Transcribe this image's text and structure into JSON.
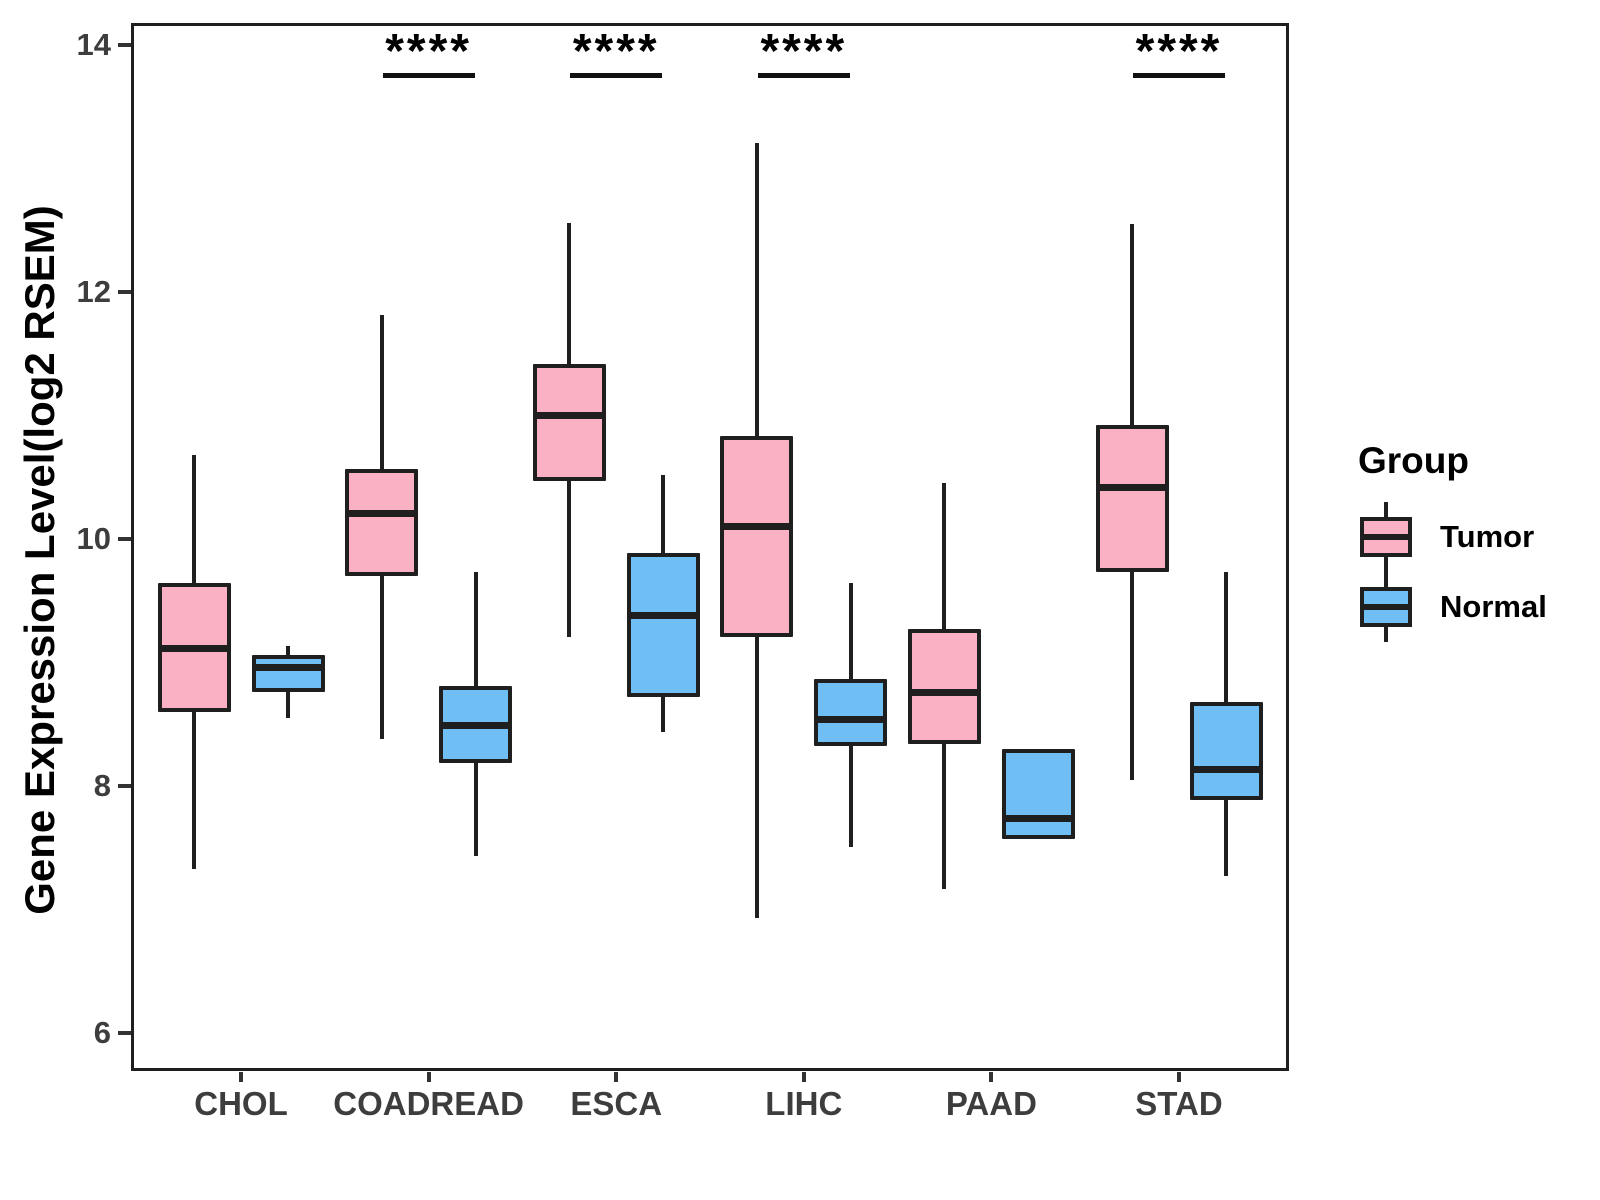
{
  "chart_data": {
    "type": "bar",
    "subtype": "grouped_boxplot",
    "title": "",
    "xlabel": "",
    "ylabel": "Gene Expression Level(log2 RSEM)",
    "categories": [
      "CHOL",
      "COADREAD",
      "ESCA",
      "LIHC",
      "PAAD",
      "STAD"
    ],
    "groups": [
      "Tumor",
      "Normal"
    ],
    "y_ticks": [
      6,
      8,
      10,
      12,
      14
    ],
    "ylim": [
      5.69,
      14.18
    ],
    "grid": "off",
    "legend_position": "right",
    "colors": {
      "Tumor": "#F9B1C3",
      "Normal": "#70BFF4",
      "line": "#1f1f1f"
    },
    "series": [
      {
        "category": "CHOL",
        "group": "Tumor",
        "whisker_low": 7.33,
        "q1": 8.6,
        "median": 9.11,
        "q3": 9.64,
        "whisker_high": 10.68
      },
      {
        "category": "CHOL",
        "group": "Normal",
        "whisker_low": 8.55,
        "q1": 8.76,
        "median": 8.96,
        "q3": 9.06,
        "whisker_high": 9.13
      },
      {
        "category": "COADREAD",
        "group": "Tumor",
        "whisker_low": 8.38,
        "q1": 9.7,
        "median": 10.21,
        "q3": 10.57,
        "whisker_high": 11.81
      },
      {
        "category": "COADREAD",
        "group": "Normal",
        "whisker_low": 7.43,
        "q1": 8.19,
        "median": 8.49,
        "q3": 8.81,
        "whisker_high": 9.73
      },
      {
        "category": "ESCA",
        "group": "Tumor",
        "whisker_low": 9.21,
        "q1": 10.47,
        "median": 11.0,
        "q3": 11.42,
        "whisker_high": 12.56
      },
      {
        "category": "ESCA",
        "group": "Normal",
        "whisker_low": 8.44,
        "q1": 8.72,
        "median": 9.38,
        "q3": 9.89,
        "whisker_high": 10.52
      },
      {
        "category": "LIHC",
        "group": "Tumor",
        "whisker_low": 6.93,
        "q1": 9.21,
        "median": 10.1,
        "q3": 10.83,
        "whisker_high": 13.21
      },
      {
        "category": "LIHC",
        "group": "Normal",
        "whisker_low": 7.51,
        "q1": 8.32,
        "median": 8.54,
        "q3": 8.87,
        "whisker_high": 9.64
      },
      {
        "category": "PAAD",
        "group": "Tumor",
        "whisker_low": 7.17,
        "q1": 8.34,
        "median": 8.76,
        "q3": 9.27,
        "whisker_high": 10.45
      },
      {
        "category": "PAAD",
        "group": "Normal",
        "whisker_low": 7.57,
        "q1": 7.57,
        "median": 7.74,
        "q3": 8.3,
        "whisker_high": 8.3
      },
      {
        "category": "STAD",
        "group": "Tumor",
        "whisker_low": 8.05,
        "q1": 9.73,
        "median": 10.42,
        "q3": 10.92,
        "whisker_high": 12.55
      },
      {
        "category": "STAD",
        "group": "Normal",
        "whisker_low": 7.27,
        "q1": 7.89,
        "median": 8.13,
        "q3": 8.68,
        "whisker_high": 9.73
      }
    ],
    "significance": [
      {
        "category": "COADREAD",
        "label": "****"
      },
      {
        "category": "ESCA",
        "label": "****"
      },
      {
        "category": "LIHC",
        "label": "****"
      },
      {
        "category": "STAD",
        "label": "****"
      }
    ]
  },
  "legend": {
    "title": "Group",
    "items": [
      {
        "label": "Tumor",
        "color": "#F9B1C3"
      },
      {
        "label": "Normal",
        "color": "#70BFF4"
      }
    ]
  }
}
